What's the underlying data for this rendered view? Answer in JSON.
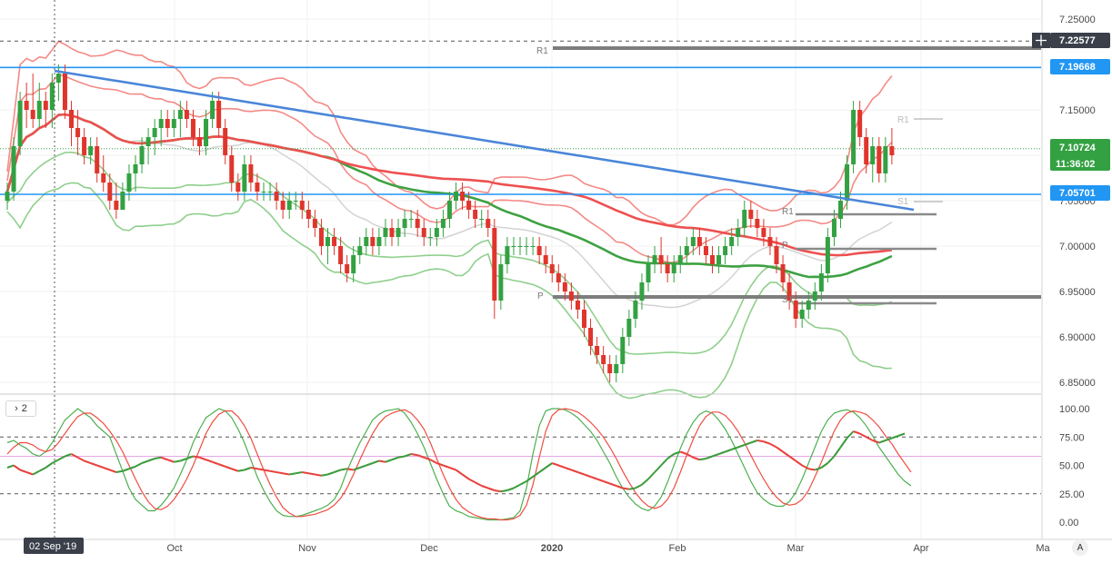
{
  "colors": {
    "bull": "#33a142",
    "bear": "#e0352c",
    "trend": "#4a86d8",
    "level": "#2196f3",
    "ma200": "#3ea142",
    "ma100": "#ee5050",
    "band_red": "#f48a86",
    "band_green": "#8fcf8c",
    "band_gray": "#d3d3d3",
    "pivot": "#7d7d7d",
    "stoch_k": "#4caf50",
    "stoch_d": "#ef4d40",
    "rsi": "#e8403c",
    "rsi_bull": "#3a9c3a"
  },
  "price_axis": {
    "ticks": [
      "7.25000",
      "7.15000",
      "7.10000",
      "7.05000",
      "7.00000",
      "6.95000",
      "6.90000",
      "6.85000"
    ],
    "tags": {
      "upper_level": "7.22577",
      "resistance": "7.19668",
      "last_price": "7.10724",
      "countdown": "11:36:02",
      "support": "7.05701"
    }
  },
  "time_axis": {
    "crosshair_label": "02 Sep '19",
    "labels": [
      "Oct",
      "Nov",
      "Dec",
      "2020",
      "Feb",
      "Mar",
      "Apr",
      "Ma"
    ]
  },
  "pivot_labels": {
    "r1_main": "R1",
    "p_main": "P",
    "r1_small": "R1",
    "p_small": "P",
    "s1_small": "S1",
    "r1_small_top": "R1",
    "s1_small_top": "S1"
  },
  "oscillator": {
    "ticks": [
      "100.00",
      "75.00",
      "50.00",
      "25.00",
      "0.00"
    ],
    "pane_toggle": "2"
  },
  "auto_button": "A",
  "chart_data": {
    "type": "candlestick",
    "title": "",
    "y_range": [
      6.82,
      7.27
    ],
    "oscillator_range": [
      -5,
      108
    ],
    "levels": {
      "upper_dashed": 7.22577,
      "r1": 7.218,
      "resistance": 7.19668,
      "support": 7.05701,
      "last": 7.10724,
      "pivot_p": 6.944,
      "small_r1": 7.035,
      "small_p": 6.997,
      "small_s1": 6.937
    },
    "trendline": [
      [
        0,
        7.193
      ],
      [
        189,
        7.04
      ]
    ],
    "candles_ohlc": [
      [
        7.05,
        7.07,
        7.04,
        7.06
      ],
      [
        7.06,
        7.12,
        7.05,
        7.11
      ],
      [
        7.11,
        7.17,
        7.1,
        7.16
      ],
      [
        7.16,
        7.18,
        7.13,
        7.15
      ],
      [
        7.15,
        7.19,
        7.13,
        7.14
      ],
      [
        7.14,
        7.18,
        7.13,
        7.16
      ],
      [
        7.16,
        7.17,
        7.13,
        7.15
      ],
      [
        7.15,
        7.19,
        7.13,
        7.18
      ],
      [
        7.18,
        7.2,
        7.16,
        7.19
      ],
      [
        7.19,
        7.2,
        7.14,
        7.15
      ],
      [
        7.15,
        7.16,
        7.11,
        7.13
      ],
      [
        7.13,
        7.15,
        7.1,
        7.12
      ],
      [
        7.12,
        7.13,
        7.09,
        7.1
      ],
      [
        7.1,
        7.12,
        7.09,
        7.11
      ],
      [
        7.11,
        7.12,
        7.07,
        7.08
      ],
      [
        7.08,
        7.1,
        7.06,
        7.07
      ],
      [
        7.07,
        7.08,
        7.04,
        7.05
      ],
      [
        7.05,
        7.07,
        7.03,
        7.04
      ],
      [
        7.04,
        7.07,
        7.04,
        7.06
      ],
      [
        7.06,
        7.09,
        7.05,
        7.08
      ],
      [
        7.08,
        7.1,
        7.06,
        7.09
      ],
      [
        7.09,
        7.12,
        7.08,
        7.11
      ],
      [
        7.11,
        7.13,
        7.09,
        7.12
      ],
      [
        7.12,
        7.14,
        7.1,
        7.13
      ],
      [
        7.13,
        7.15,
        7.11,
        7.14
      ],
      [
        7.14,
        7.15,
        7.12,
        7.13
      ],
      [
        7.13,
        7.15,
        7.12,
        7.14
      ],
      [
        7.14,
        7.16,
        7.12,
        7.15
      ],
      [
        7.15,
        7.16,
        7.13,
        7.14
      ],
      [
        7.14,
        7.15,
        7.11,
        7.12
      ],
      [
        7.12,
        7.13,
        7.1,
        7.11
      ],
      [
        7.11,
        7.15,
        7.1,
        7.14
      ],
      [
        7.14,
        7.17,
        7.13,
        7.16
      ],
      [
        7.16,
        7.17,
        7.12,
        7.13
      ],
      [
        7.13,
        7.14,
        7.09,
        7.1
      ],
      [
        7.1,
        7.11,
        7.06,
        7.07
      ],
      [
        7.07,
        7.08,
        7.05,
        7.06
      ],
      [
        7.06,
        7.1,
        7.05,
        7.09
      ],
      [
        7.09,
        7.1,
        7.06,
        7.07
      ],
      [
        7.07,
        7.08,
        7.05,
        7.06
      ],
      [
        7.06,
        7.07,
        7.05,
        7.06
      ],
      [
        7.06,
        7.07,
        7.05,
        7.06
      ],
      [
        7.06,
        7.07,
        7.04,
        7.05
      ],
      [
        7.05,
        7.06,
        7.03,
        7.04
      ],
      [
        7.04,
        7.06,
        7.03,
        7.05
      ],
      [
        7.05,
        7.06,
        7.04,
        7.05
      ],
      [
        7.05,
        7.06,
        7.03,
        7.04
      ],
      [
        7.04,
        7.05,
        7.02,
        7.03
      ],
      [
        7.03,
        7.04,
        7.01,
        7.02
      ],
      [
        7.02,
        7.03,
        6.99,
        7.0
      ],
      [
        7.0,
        7.02,
        6.98,
        7.01
      ],
      [
        7.01,
        7.02,
        6.99,
        7.0
      ],
      [
        7.0,
        7.01,
        6.97,
        6.98
      ],
      [
        6.98,
        6.99,
        6.96,
        6.97
      ],
      [
        6.97,
        7.0,
        6.96,
        6.99
      ],
      [
        6.99,
        7.01,
        6.98,
        7.0
      ],
      [
        7.0,
        7.02,
        6.99,
        7.01
      ],
      [
        7.01,
        7.02,
        6.99,
        7.0
      ],
      [
        7.0,
        7.02,
        6.99,
        7.01
      ],
      [
        7.01,
        7.03,
        7.0,
        7.02
      ],
      [
        7.02,
        7.03,
        7.0,
        7.01
      ],
      [
        7.01,
        7.03,
        7.0,
        7.02
      ],
      [
        7.02,
        7.04,
        7.01,
        7.03
      ],
      [
        7.03,
        7.04,
        7.02,
        7.03
      ],
      [
        7.03,
        7.04,
        7.01,
        7.02
      ],
      [
        7.02,
        7.03,
        7.0,
        7.01
      ],
      [
        7.01,
        7.02,
        7.0,
        7.01
      ],
      [
        7.01,
        7.03,
        7.0,
        7.02
      ],
      [
        7.02,
        7.04,
        7.01,
        7.03
      ],
      [
        7.03,
        7.06,
        7.02,
        7.05
      ],
      [
        7.05,
        7.07,
        7.04,
        7.06
      ],
      [
        7.06,
        7.07,
        7.04,
        7.05
      ],
      [
        7.05,
        7.06,
        7.03,
        7.04
      ],
      [
        7.04,
        7.05,
        7.02,
        7.03
      ],
      [
        7.03,
        7.04,
        7.02,
        7.03
      ],
      [
        7.03,
        7.04,
        7.01,
        7.02
      ],
      [
        7.02,
        7.03,
        6.92,
        6.94
      ],
      [
        6.94,
        6.99,
        6.93,
        6.98
      ],
      [
        6.98,
        7.01,
        6.97,
        7.0
      ],
      [
        7.0,
        7.01,
        6.99,
        7.0
      ],
      [
        7.0,
        7.01,
        6.99,
        7.0
      ],
      [
        7.0,
        7.01,
        6.99,
        7.0
      ],
      [
        7.0,
        7.01,
        6.99,
        7.0
      ],
      [
        7.0,
        7.01,
        6.98,
        6.99
      ],
      [
        6.99,
        7.0,
        6.97,
        6.98
      ],
      [
        6.98,
        6.99,
        6.96,
        6.97
      ],
      [
        6.97,
        6.98,
        6.95,
        6.96
      ],
      [
        6.96,
        6.97,
        6.94,
        6.95
      ],
      [
        6.95,
        6.96,
        6.93,
        6.94
      ],
      [
        6.94,
        6.95,
        6.92,
        6.93
      ],
      [
        6.93,
        6.94,
        6.9,
        6.91
      ],
      [
        6.91,
        6.92,
        6.88,
        6.89
      ],
      [
        6.89,
        6.9,
        6.87,
        6.88
      ],
      [
        6.88,
        6.89,
        6.86,
        6.87
      ],
      [
        6.87,
        6.88,
        6.85,
        6.86
      ],
      [
        6.86,
        6.88,
        6.85,
        6.87
      ],
      [
        6.87,
        6.91,
        6.86,
        6.9
      ],
      [
        6.9,
        6.93,
        6.89,
        6.92
      ],
      [
        6.92,
        6.95,
        6.91,
        6.94
      ],
      [
        6.94,
        6.97,
        6.93,
        6.96
      ],
      [
        6.96,
        6.99,
        6.95,
        6.98
      ],
      [
        6.98,
        7.0,
        6.97,
        6.99
      ],
      [
        6.99,
        7.01,
        6.97,
        6.98
      ],
      [
        6.98,
        6.99,
        6.96,
        6.97
      ],
      [
        6.97,
        6.99,
        6.96,
        6.98
      ],
      [
        6.98,
        7.0,
        6.97,
        6.99
      ],
      [
        6.99,
        7.01,
        6.98,
        7.0
      ],
      [
        7.0,
        7.02,
        6.99,
        7.01
      ],
      [
        7.01,
        7.02,
        6.99,
        7.0
      ],
      [
        7.0,
        7.01,
        6.98,
        6.99
      ],
      [
        6.99,
        7.0,
        6.97,
        6.98
      ],
      [
        6.98,
        7.0,
        6.97,
        6.99
      ],
      [
        6.99,
        7.01,
        6.98,
        7.0
      ],
      [
        7.0,
        7.02,
        6.99,
        7.01
      ],
      [
        7.01,
        7.03,
        7.0,
        7.02
      ],
      [
        7.02,
        7.05,
        7.01,
        7.04
      ],
      [
        7.04,
        7.05,
        7.02,
        7.03
      ],
      [
        7.03,
        7.04,
        7.01,
        7.02
      ],
      [
        7.02,
        7.03,
        7.0,
        7.01
      ],
      [
        7.01,
        7.02,
        6.99,
        7.0
      ],
      [
        7.0,
        7.01,
        6.97,
        6.98
      ],
      [
        6.98,
        6.99,
        6.95,
        6.96
      ],
      [
        6.96,
        6.97,
        6.93,
        6.94
      ],
      [
        6.94,
        6.95,
        6.91,
        6.92
      ],
      [
        6.92,
        6.94,
        6.91,
        6.93
      ],
      [
        6.93,
        6.95,
        6.92,
        6.94
      ],
      [
        6.94,
        6.96,
        6.93,
        6.95
      ],
      [
        6.95,
        6.98,
        6.94,
        6.97
      ],
      [
        6.97,
        7.02,
        6.96,
        7.01
      ],
      [
        7.01,
        7.04,
        7.0,
        7.03
      ],
      [
        7.03,
        7.06,
        7.02,
        7.05
      ],
      [
        7.05,
        7.1,
        7.04,
        7.09
      ],
      [
        7.09,
        7.16,
        7.08,
        7.15
      ],
      [
        7.15,
        7.16,
        7.11,
        7.12
      ],
      [
        7.12,
        7.13,
        7.08,
        7.09
      ],
      [
        7.09,
        7.12,
        7.07,
        7.11
      ],
      [
        7.11,
        7.12,
        7.07,
        7.08
      ],
      [
        7.08,
        7.12,
        7.07,
        7.11
      ],
      [
        7.11,
        7.13,
        7.09,
        7.1
      ]
    ],
    "stochastic_k": [
      70,
      72,
      68,
      65,
      60,
      58,
      62,
      70,
      80,
      90,
      95,
      100,
      96,
      92,
      85,
      80,
      75,
      60,
      45,
      30,
      20,
      15,
      10,
      10,
      15,
      22,
      30,
      42,
      55,
      70,
      82,
      92,
      96,
      100,
      98,
      92,
      82,
      70,
      55,
      40,
      28,
      18,
      10,
      6,
      5,
      5,
      6,
      8,
      10,
      12,
      15,
      20,
      30,
      45,
      58,
      70,
      80,
      90,
      95,
      98,
      99,
      100,
      96,
      88,
      78,
      66,
      52,
      38,
      25,
      14,
      10,
      8,
      5,
      4,
      3,
      2,
      2,
      2,
      3,
      4,
      10,
      30,
      60,
      85,
      98,
      100,
      100,
      99,
      96,
      92,
      86,
      80,
      72,
      62,
      52,
      40,
      30,
      22,
      16,
      12,
      10,
      14,
      22,
      35,
      50,
      65,
      78,
      88,
      95,
      98,
      96,
      90,
      82,
      72,
      60,
      48,
      36,
      26,
      20,
      16,
      14,
      14,
      18,
      26,
      38,
      52,
      66,
      80,
      90,
      96,
      98,
      99,
      97,
      92,
      85,
      76,
      66,
      58,
      50,
      42,
      36,
      32
    ],
    "stochastic_d": [
      60,
      66,
      70,
      70,
      68,
      64,
      62,
      64,
      70,
      78,
      86,
      93,
      96,
      96,
      92,
      87,
      80,
      72,
      62,
      50,
      38,
      27,
      18,
      12,
      11,
      14,
      20,
      28,
      38,
      50,
      64,
      78,
      88,
      95,
      98,
      98,
      93,
      85,
      74,
      60,
      46,
      33,
      22,
      13,
      8,
      5,
      5,
      6,
      7,
      9,
      11,
      15,
      21,
      30,
      42,
      55,
      67,
      78,
      87,
      93,
      96,
      98,
      99,
      96,
      90,
      82,
      70,
      56,
      42,
      30,
      20,
      13,
      9,
      6,
      4,
      3,
      3,
      2,
      2,
      3,
      6,
      15,
      33,
      57,
      80,
      94,
      99,
      100,
      99,
      97,
      93,
      88,
      82,
      75,
      66,
      56,
      45,
      35,
      26,
      19,
      14,
      12,
      14,
      20,
      30,
      44,
      59,
      73,
      85,
      93,
      97,
      97,
      94,
      88,
      80,
      70,
      59,
      48,
      38,
      29,
      22,
      17,
      15,
      16,
      20,
      28,
      40,
      53,
      67,
      80,
      90,
      96,
      98,
      97,
      95,
      90,
      84,
      76,
      69,
      60,
      52,
      44
    ],
    "rsi": [
      48,
      50,
      46,
      44,
      42,
      45,
      48,
      52,
      55,
      58,
      60,
      57,
      54,
      52,
      50,
      48,
      46,
      44,
      45,
      47,
      49,
      52,
      54,
      56,
      57,
      55,
      53,
      54,
      56,
      58,
      57,
      55,
      53,
      51,
      49,
      47,
      45,
      46,
      48,
      47,
      46,
      45,
      44,
      43,
      42,
      43,
      44,
      43,
      42,
      41,
      42,
      44,
      46,
      47,
      46,
      48,
      50,
      52,
      54,
      53,
      55,
      57,
      58,
      60,
      59,
      57,
      55,
      52,
      50,
      48,
      46,
      42,
      38,
      35,
      32,
      30,
      28,
      27,
      28,
      30,
      33,
      36,
      40,
      44,
      48,
      52,
      50,
      48,
      46,
      44,
      42,
      40,
      38,
      36,
      34,
      32,
      30,
      29,
      30,
      33,
      38,
      44,
      50,
      56,
      60,
      62,
      60,
      57,
      55,
      56,
      58,
      60,
      62,
      64,
      66,
      68,
      70,
      72,
      71,
      69,
      66,
      62,
      58,
      54,
      50,
      47,
      46,
      48,
      52,
      58,
      66,
      74,
      80,
      78,
      75,
      72,
      70,
      72,
      74,
      76,
      78
    ]
  }
}
